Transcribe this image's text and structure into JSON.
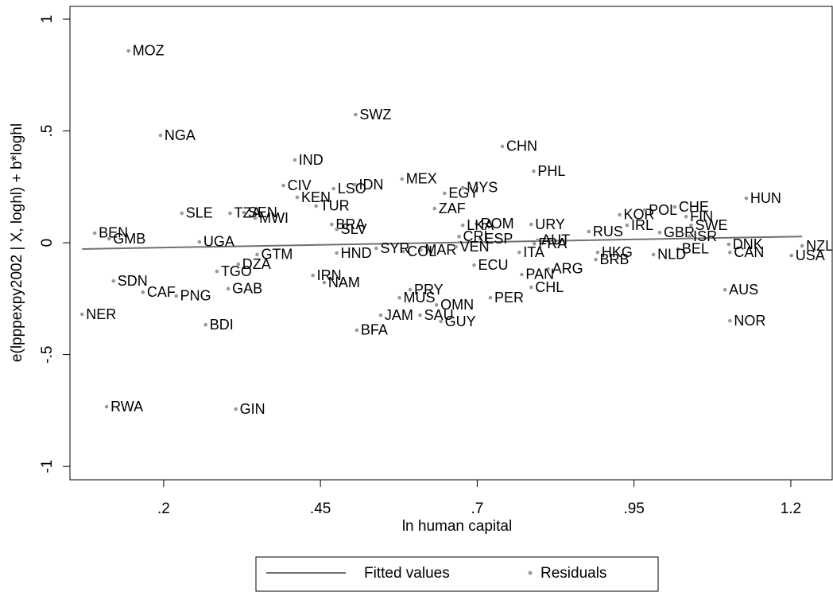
{
  "chart_data": {
    "type": "scatter",
    "xlabel": "ln human capital",
    "ylabel": "e(lpppexpy2002 | X, loghl) + b*loghl",
    "xlim": [
      0.0506,
      1.266
    ],
    "ylim": [
      -1.06,
      1.057
    ],
    "xticks": [
      {
        "value": 0.2,
        "label": ".2"
      },
      {
        "value": 0.45,
        "label": ".45"
      },
      {
        "value": 0.7,
        "label": ".7"
      },
      {
        "value": 0.95,
        "label": ".95"
      },
      {
        "value": 1.2,
        "label": "1.2"
      }
    ],
    "yticks": [
      -1,
      {
        "value": -0.5,
        "label": "-.5"
      },
      0,
      {
        "value": 0.5,
        "label": ".5"
      },
      1
    ],
    "legend": "bottom",
    "series": [
      {
        "name": "Fitted values",
        "kind": "line",
        "color": "#707070",
        "x": [
          0.07,
          1.218
        ],
        "values": [
          -0.028,
          0.028
        ]
      },
      {
        "name": "Residuals",
        "kind": "points",
        "color": "#9a9a9a",
        "labels": [
          "MOZ",
          "NGA",
          "SWZ",
          "CHN",
          "IND",
          "PHL",
          "MEX",
          "LSO",
          "IDN",
          "CIV",
          "EGY",
          "MYS",
          "KEN",
          "TUR",
          "HUN",
          "SLE",
          "TZA",
          "SEN",
          "MWI",
          "ZAF",
          "BRA",
          "SLV",
          "ROM",
          "LKA",
          "URY",
          "KOR",
          "POL",
          "CHE",
          "FIN",
          "IRL",
          "SWE",
          "GBR",
          "ISR",
          "BEN",
          "GMB",
          "UGA",
          "RUS",
          "DNK",
          "NZL",
          "USA",
          "BEL",
          "CAN",
          "NLD",
          "HKG",
          "BRB",
          "AUT",
          "FRA",
          "ITA",
          "ESP",
          "CRI",
          "MAR",
          "VEN",
          "COL",
          "HND",
          "SYR",
          "GTM",
          "DZA",
          "TGO",
          "ECU",
          "ARG",
          "PAN",
          "CHL",
          "IRN",
          "NAM",
          "SDN",
          "CAF",
          "PNG",
          "GAB",
          "PRY",
          "MUS",
          "PER",
          "OMN",
          "AUS",
          "JAM",
          "SAU",
          "GUY",
          "NER",
          "BDI",
          "BFA",
          "NOR",
          "RWA",
          "GIN"
        ],
        "x": [
          0.144,
          0.195,
          0.506,
          0.74,
          0.409,
          0.79,
          0.58,
          0.471,
          0.505,
          0.391,
          0.648,
          0.677,
          0.413,
          0.443,
          1.129,
          0.229,
          0.306,
          0.328,
          0.346,
          0.632,
          0.468,
          0.476,
          0.699,
          0.677,
          0.786,
          0.927,
          0.967,
          1.015,
          1.033,
          0.939,
          1.041,
          0.991,
          1.038,
          0.09,
          0.113,
          0.257,
          0.878,
          1.101,
          1.218,
          1.201,
          1.02,
          1.103,
          0.981,
          0.892,
          0.889,
          0.796,
          0.791,
          0.767,
          0.705,
          0.671,
          0.61,
          0.666,
          0.582,
          0.476,
          0.539,
          0.349,
          0.319,
          0.285,
          0.695,
          0.813,
          0.771,
          0.786,
          0.438,
          0.456,
          0.12,
          0.167,
          0.22,
          0.303,
          0.593,
          0.576,
          0.721,
          0.635,
          1.095,
          0.546,
          0.609,
          0.642,
          0.07,
          0.267,
          0.508,
          1.103,
          0.109,
          0.315
        ],
        "values": [
          0.858,
          0.48,
          0.573,
          0.431,
          0.37,
          0.32,
          0.285,
          0.242,
          0.26,
          0.256,
          0.221,
          0.246,
          0.203,
          0.164,
          0.199,
          0.132,
          0.132,
          0.135,
          0.11,
          0.153,
          0.082,
          0.06,
          0.085,
          0.078,
          0.082,
          0.125,
          0.146,
          0.16,
          0.117,
          0.078,
          0.078,
          0.046,
          0.028,
          0.043,
          0.018,
          0.004,
          0.05,
          -0.007,
          -0.014,
          -0.057,
          -0.028,
          -0.043,
          -0.053,
          -0.043,
          -0.075,
          0.011,
          -0.004,
          -0.043,
          0.018,
          0.028,
          -0.032,
          -0.018,
          -0.039,
          -0.046,
          -0.025,
          -0.053,
          -0.096,
          -0.128,
          -0.1,
          -0.117,
          -0.142,
          -0.199,
          -0.146,
          -0.178,
          -0.171,
          -0.221,
          -0.238,
          -0.206,
          -0.21,
          -0.246,
          -0.246,
          -0.278,
          -0.21,
          -0.324,
          -0.324,
          -0.352,
          -0.32,
          -0.367,
          -0.391,
          -0.349,
          -0.733,
          -0.744
        ]
      }
    ]
  }
}
